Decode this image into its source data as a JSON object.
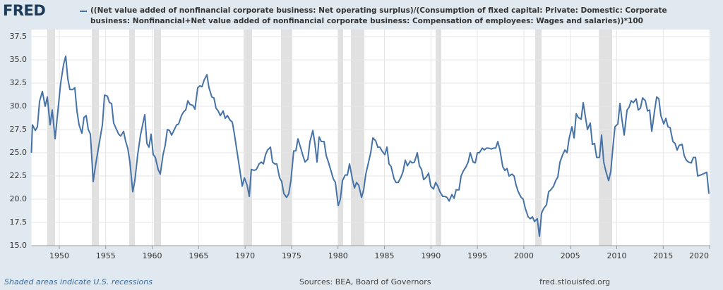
{
  "chart_data": {
    "type": "line",
    "logo": "FRED",
    "note": "Shaded areas indicate U.S. recessions",
    "source": "Sources: BEA, Board of Governors",
    "url": "fred.stlouisfed.org",
    "xlim": [
      1947,
      2020.07
    ],
    "xticks": [
      1950,
      1955,
      1960,
      1965,
      1970,
      1975,
      1980,
      1985,
      1990,
      1995,
      2000,
      2005,
      2010,
      2015,
      2020
    ],
    "ylim": [
      15,
      37.5
    ],
    "yticks": [
      {
        "value": 15,
        "label": "15.0"
      },
      17.5,
      {
        "value": 20,
        "label": "20.0"
      },
      22.5,
      {
        "value": 25,
        "label": "25.0"
      },
      27.5,
      {
        "value": 30,
        "label": "30.0"
      },
      32.5,
      {
        "value": 35,
        "label": "35.0"
      },
      37.5
    ],
    "grid": true,
    "recession_color": "#e1e1e1",
    "recessions": [
      [
        1948.71,
        1949.55
      ],
      [
        1953.5,
        1954.26
      ],
      [
        1957.53,
        1958.13
      ],
      [
        1960.19,
        1960.95
      ],
      [
        1969.84,
        1970.75
      ],
      [
        1973.87,
        1975.08
      ],
      [
        1980.02,
        1980.55
      ],
      [
        1981.39,
        1982.84
      ],
      [
        1990.51,
        1991.12
      ],
      [
        2001.23,
        2001.91
      ],
      [
        2008.07,
        2009.51
      ]
    ],
    "x": [
      1947.0,
      1947.11,
      1947.42,
      1947.65,
      1947.87,
      1948.18,
      1948.48,
      1948.71,
      1949.01,
      1949.24,
      1949.55,
      1949.85,
      1950.15,
      1950.46,
      1950.69,
      1950.91,
      1951.14,
      1951.45,
      1951.67,
      1951.9,
      1952.13,
      1952.43,
      1952.66,
      1952.89,
      1953.12,
      1953.35,
      1953.65,
      1953.88,
      1954.26,
      1954.64,
      1954.87,
      1955.17,
      1955.4,
      1955.63,
      1955.85,
      1956.16,
      1956.39,
      1956.61,
      1956.92,
      1957.15,
      1957.37,
      1957.6,
      1957.91,
      1958.13,
      1958.44,
      1958.74,
      1959.2,
      1959.43,
      1959.65,
      1959.88,
      1960.11,
      1960.34,
      1960.64,
      1960.87,
      1961.17,
      1961.4,
      1961.63,
      1961.86,
      1962.09,
      1962.39,
      1962.62,
      1962.85,
      1963.15,
      1963.38,
      1963.61,
      1963.84,
      1964.06,
      1964.37,
      1964.6,
      1964.9,
      1965.13,
      1965.36,
      1965.58,
      1965.89,
      1966.11,
      1966.42,
      1966.65,
      1966.87,
      1967.1,
      1967.33,
      1967.63,
      1967.86,
      1968.09,
      1968.39,
      1968.62,
      1968.85,
      1969.15,
      1969.38,
      1969.69,
      1969.92,
      1970.22,
      1970.45,
      1970.67,
      1970.98,
      1971.21,
      1971.51,
      1971.74,
      1971.97,
      1972.2,
      1972.42,
      1972.73,
      1972.95,
      1973.18,
      1973.41,
      1973.71,
      1973.94,
      1974.17,
      1974.47,
      1974.7,
      1974.93,
      1975.23,
      1975.46,
      1975.69,
      1975.99,
      1976.22,
      1976.45,
      1976.75,
      1976.98,
      1977.29,
      1977.51,
      1977.74,
      1977.97,
      1978.2,
      1978.5,
      1978.73,
      1978.96,
      1979.26,
      1979.49,
      1979.72,
      1980.02,
      1980.25,
      1980.48,
      1980.78,
      1981.01,
      1981.24,
      1981.54,
      1981.77,
      1982.0,
      1982.23,
      1982.53,
      1982.76,
      1982.99,
      1983.29,
      1983.52,
      1983.75,
      1984.05,
      1984.28,
      1984.51,
      1984.73,
      1985.04,
      1985.27,
      1985.49,
      1985.72,
      1986.03,
      1986.25,
      1986.48,
      1986.79,
      1987.01,
      1987.24,
      1987.47,
      1987.77,
      1988.0,
      1988.23,
      1988.53,
      1988.76,
      1988.99,
      1989.22,
      1989.52,
      1989.75,
      1989.98,
      1990.28,
      1990.51,
      1990.74,
      1990.97,
      1991.27,
      1991.5,
      1991.73,
      1991.96,
      1992.26,
      1992.49,
      1992.71,
      1993.02,
      1993.25,
      1993.47,
      1993.78,
      1994.01,
      1994.23,
      1994.54,
      1994.77,
      1995.0,
      1995.22,
      1995.53,
      1995.75,
      1995.98,
      1996.21,
      1996.51,
      1996.74,
      1996.97,
      1997.2,
      1997.43,
      1997.73,
      1997.96,
      1998.19,
      1998.41,
      1998.72,
      1998.95,
      1999.17,
      1999.4,
      1999.71,
      1999.93,
      2000.16,
      2000.47,
      2000.69,
      2000.92,
      2001.15,
      2001.45,
      2001.68,
      2001.91,
      2002.14,
      2002.44,
      2002.67,
      2002.9,
      2003.2,
      2003.43,
      2003.66,
      2003.89,
      2004.19,
      2004.42,
      2004.65,
      2004.87,
      2005.18,
      2005.41,
      2005.64,
      2005.86,
      2006.17,
      2006.39,
      2006.62,
      2006.85,
      2007.15,
      2007.38,
      2007.61,
      2007.84,
      2008.14,
      2008.37,
      2008.6,
      2008.83,
      2009.13,
      2009.36,
      2009.58,
      2009.81,
      2010.12,
      2010.35,
      2010.57,
      2010.8,
      2011.11,
      2011.33,
      2011.56,
      2011.79,
      2012.09,
      2012.32,
      2012.55,
      2012.78,
      2013.08,
      2013.31,
      2013.54,
      2013.77,
      2014.07,
      2014.3,
      2014.53,
      2014.75,
      2015.06,
      2015.29,
      2015.51,
      2015.74,
      2016.05,
      2016.28,
      2016.5,
      2016.73,
      2017.04,
      2017.26,
      2017.49,
      2017.72,
      2018.02,
      2018.25,
      2018.48,
      2018.71,
      2019.01,
      2019.24,
      2019.47,
      2019.69,
      2019.92
    ],
    "series": [
      {
        "name": "((Net value added of nonfinancial corporate business: Net operating surplus)/(Consumption of fixed capital: Private: Domestic: Corporate business: Nonfinancial+Net value added of nonfinancial corporate business: Compensation of employees: Wages and salaries))*100",
        "color": "#4572a7",
        "values": [
          25.0,
          28.0,
          27.4,
          27.8,
          30.5,
          31.6,
          30.0,
          31.0,
          28.0,
          29.6,
          26.5,
          29.5,
          32.5,
          34.5,
          35.4,
          33.0,
          31.8,
          31.8,
          32.0,
          29.5,
          28.0,
          27.1,
          28.8,
          29.0,
          27.5,
          27.0,
          21.9,
          23.5,
          25.8,
          28.0,
          31.2,
          31.1,
          30.4,
          30.3,
          28.2,
          27.5,
          27.0,
          26.8,
          27.3,
          26.2,
          25.5,
          24.0,
          20.8,
          22.0,
          24.8,
          26.9,
          29.1,
          26.0,
          25.6,
          27.0,
          24.8,
          24.5,
          23.2,
          22.7,
          24.8,
          25.8,
          27.5,
          27.4,
          26.9,
          27.5,
          28.0,
          28.1,
          29.0,
          29.4,
          29.6,
          30.6,
          30.2,
          30.1,
          29.7,
          32.0,
          32.2,
          32.1,
          32.8,
          33.4,
          32.0,
          31.0,
          30.9,
          29.8,
          29.5,
          29.0,
          29.5,
          28.7,
          29.0,
          28.5,
          28.3,
          27.0,
          25.0,
          23.5,
          21.4,
          22.3,
          21.5,
          20.3,
          23.2,
          23.1,
          23.2,
          23.8,
          24.0,
          23.8,
          24.8,
          25.3,
          25.6,
          24.0,
          23.8,
          23.8,
          22.3,
          21.9,
          20.6,
          20.2,
          20.6,
          22.0,
          25.2,
          25.2,
          26.5,
          25.5,
          24.7,
          24.0,
          24.3,
          26.2,
          27.4,
          26.0,
          24.0,
          26.7,
          26.2,
          26.2,
          24.7,
          24.0,
          23.0,
          22.2,
          21.8,
          19.3,
          20.0,
          22.0,
          22.6,
          22.6,
          23.8,
          22.2,
          21.2,
          21.8,
          21.5,
          20.2,
          21.0,
          22.7,
          24.0,
          25.0,
          26.6,
          26.3,
          25.6,
          25.6,
          25.2,
          24.8,
          25.6,
          23.8,
          23.5,
          22.2,
          21.8,
          21.8,
          22.4,
          23.0,
          24.2,
          23.6,
          24.1,
          23.9,
          24.0,
          25.0,
          23.6,
          23.2,
          22.1,
          22.4,
          22.8,
          21.4,
          21.1,
          21.8,
          21.4,
          20.8,
          20.3,
          20.3,
          20.2,
          19.8,
          20.5,
          20.1,
          21.0,
          21.0,
          22.5,
          23.0,
          23.5,
          24.0,
          25.0,
          24.0,
          23.9,
          25.0,
          25.0,
          25.5,
          25.3,
          25.5,
          25.5,
          25.4,
          25.5,
          25.5,
          26.2,
          25.3,
          23.5,
          23.1,
          23.3,
          22.5,
          22.7,
          22.5,
          21.5,
          20.8,
          20.2,
          20.0,
          19.0,
          18.1,
          17.9,
          18.1,
          17.6,
          17.9,
          16.0,
          18.5,
          19.0,
          19.4,
          20.8,
          21.0,
          21.4,
          22.0,
          22.4,
          24.0,
          24.8,
          25.3,
          25.0,
          26.5,
          27.8,
          26.6,
          29.2,
          28.8,
          28.6,
          30.4,
          28.9,
          27.5,
          28.2,
          25.9,
          26.0,
          24.5,
          24.5,
          26.9,
          24.0,
          23.0,
          22.0,
          23.0,
          25.5,
          27.8,
          28.1,
          30.3,
          28.5,
          26.9,
          29.6,
          29.9,
          30.6,
          30.4,
          30.8,
          29.6,
          29.8,
          30.9,
          30.6,
          29.5,
          29.6,
          27.3,
          29.5,
          31.0,
          30.8,
          29.0,
          28.1,
          28.7,
          27.8,
          27.7,
          26.2,
          26.0,
          25.3,
          25.8,
          25.9,
          24.7,
          24.2,
          24.0,
          23.9,
          24.5,
          24.5,
          22.5,
          22.6,
          22.7,
          22.8,
          22.9,
          20.6
        ]
      }
    ]
  }
}
